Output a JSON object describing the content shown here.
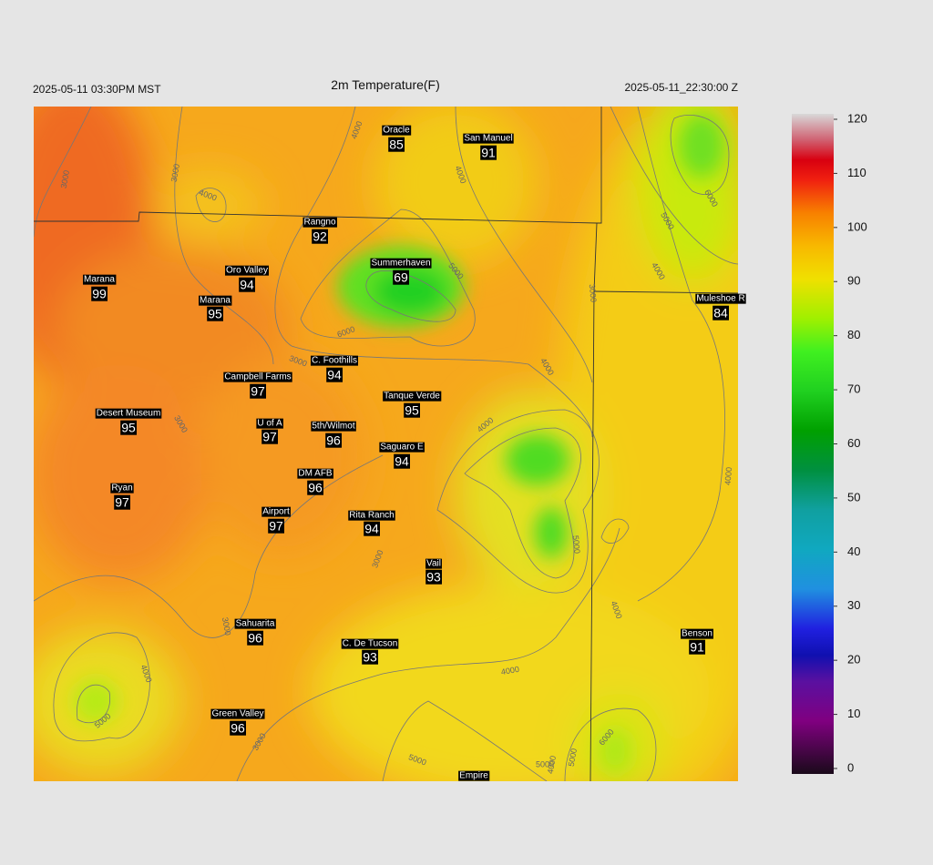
{
  "header": {
    "left": "2025-05-11 03:30PM MST",
    "title": "2m Temperature(F)",
    "right": "2025-05-11_22:30:00 Z"
  },
  "stations": [
    {
      "name": "Oracle",
      "value": 85
    },
    {
      "name": "San Manuel",
      "value": 91
    },
    {
      "name": "Rangno",
      "value": 92
    },
    {
      "name": "Summerhaven",
      "value": 69
    },
    {
      "name": "Oro Valley",
      "value": 94
    },
    {
      "name": "Marana",
      "value": 99
    },
    {
      "name": "Marana",
      "value": 95
    },
    {
      "name": "Muleshoe R",
      "value": 84
    },
    {
      "name": "C. Foothills",
      "value": 94
    },
    {
      "name": "Campbell Farms",
      "value": 97
    },
    {
      "name": "Tanque Verde",
      "value": 95
    },
    {
      "name": "Desert Museum",
      "value": 95
    },
    {
      "name": "U of A",
      "value": 97
    },
    {
      "name": "5th/Wilmot",
      "value": 96
    },
    {
      "name": "Saguaro E",
      "value": 94
    },
    {
      "name": "DM AFB",
      "value": 96
    },
    {
      "name": "Ryan",
      "value": 97
    },
    {
      "name": "Airport",
      "value": 97
    },
    {
      "name": "Rita Ranch",
      "value": 94
    },
    {
      "name": "Vail",
      "value": 93
    },
    {
      "name": "Benson",
      "value": 91
    },
    {
      "name": "Sahuarita",
      "value": 96
    },
    {
      "name": "C. De Tucson",
      "value": 93
    },
    {
      "name": "Green Valley",
      "value": 96
    },
    {
      "name": "Empire"
    }
  ],
  "contour_labels": [
    "4000",
    "3000",
    "3000",
    "4000",
    "4000",
    "6000",
    "5000",
    "4000",
    "6000",
    "5000",
    "3000",
    "3000",
    "4000",
    "4000",
    "3000",
    "5000",
    "3000",
    "4000",
    "5000",
    "3000",
    "4000",
    "5000",
    "4000",
    "5000",
    "6000",
    "4000",
    "4000",
    "5000",
    "3000"
  ],
  "colorbar": {
    "lim": [
      0,
      120
    ],
    "ticks": [
      0,
      10,
      20,
      30,
      40,
      50,
      60,
      70,
      80,
      90,
      100,
      110,
      120
    ]
  }
}
